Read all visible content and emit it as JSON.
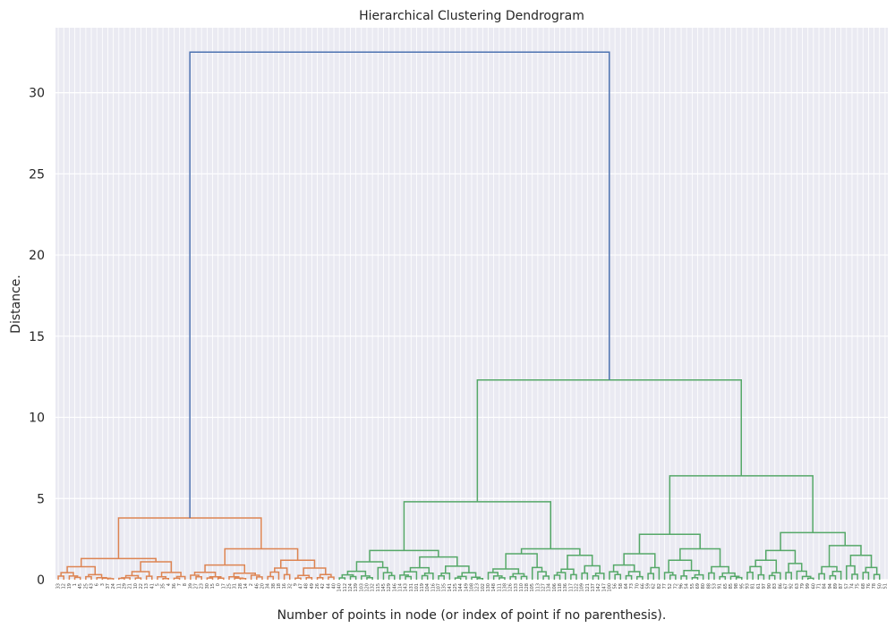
{
  "chart_data": {
    "type": "dendrogram",
    "title": "Hierarchical Clustering Dendrogram",
    "xlabel": "Number of points in node (or index of point if no parenthesis).",
    "ylabel": "Distance.",
    "ylim": [
      0,
      34
    ],
    "yticks": [
      "0",
      "5",
      "10",
      "15",
      "20",
      "25",
      "30"
    ],
    "grid": true,
    "colors": {
      "background": "#eaeaf2",
      "grid": "#ffffff",
      "root": "#4c72b0",
      "cluster_1": "#dd8452",
      "cluster_2": "#55a868"
    },
    "merges": [
      {
        "name": "root",
        "height": 32.5,
        "color": "root"
      },
      {
        "name": "cluster_1",
        "height": 3.8,
        "color": "cluster_1"
      },
      {
        "name": "cluster_2",
        "height": 12.3,
        "color": "cluster_2"
      },
      {
        "name": "cluster_2a",
        "height": 4.8,
        "color": "cluster_2"
      },
      {
        "name": "cluster_2b",
        "height": 6.4,
        "color": "cluster_2"
      },
      {
        "name": "cluster_2b_left",
        "height": 2.8,
        "color": "cluster_2"
      },
      {
        "name": "cluster_2b_right",
        "height": 2.9,
        "color": "cluster_2"
      }
    ],
    "leaf_labels": [
      "33",
      "12",
      "19",
      "1",
      "45",
      "25",
      "43",
      "6",
      "3",
      "37",
      "24",
      "11",
      "29",
      "21",
      "10",
      "22",
      "13",
      "41",
      "5",
      "35",
      "4",
      "36",
      "7",
      "8",
      "39",
      "27",
      "23",
      "30",
      "15",
      "0",
      "17",
      "25",
      "31",
      "28",
      "14",
      "2",
      "46",
      "20",
      "34",
      "38",
      "18",
      "16",
      "32",
      "9",
      "47",
      "48",
      "49",
      "26",
      "42",
      "44",
      "40",
      "140",
      "112",
      "124",
      "139",
      "103",
      "120",
      "132",
      "115",
      "145",
      "129",
      "146",
      "114",
      "143",
      "131",
      "101",
      "119",
      "104",
      "116",
      "107",
      "135",
      "141",
      "125",
      "144",
      "149",
      "108",
      "123",
      "102",
      "130",
      "148",
      "111",
      "138",
      "126",
      "133",
      "110",
      "128",
      "105",
      "113",
      "127",
      "134",
      "106",
      "118",
      "136",
      "117",
      "122",
      "109",
      "121",
      "137",
      "142",
      "147",
      "100",
      "56",
      "58",
      "64",
      "73",
      "70",
      "66",
      "59",
      "62",
      "82",
      "77",
      "52",
      "72",
      "96",
      "54",
      "55",
      "69",
      "80",
      "88",
      "53",
      "91",
      "65",
      "85",
      "98",
      "95",
      "93",
      "81",
      "61",
      "97",
      "90",
      "83",
      "86",
      "67",
      "92",
      "63",
      "79",
      "99",
      "60",
      "71",
      "84",
      "94",
      "89",
      "87",
      "57",
      "74",
      "75",
      "68",
      "76",
      "78",
      "50",
      "51"
    ]
  }
}
